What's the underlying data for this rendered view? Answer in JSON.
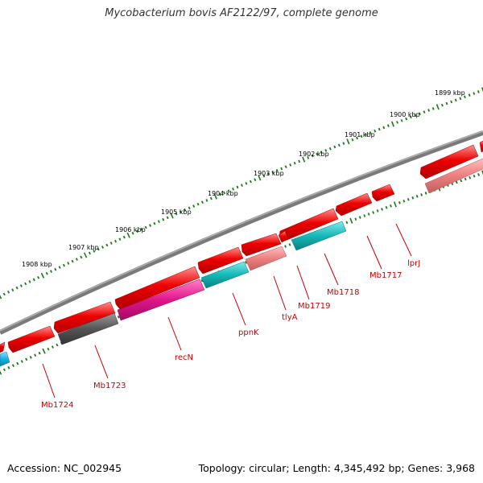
{
  "title": "Mycobacterium bovis AF2122/97, complete genome",
  "footer": {
    "accession": "Accession: NC_002945",
    "summary": "Topology: circular; Length: 4,345,492 bp; Genes: 3,968"
  },
  "colors": {
    "backbone": "#7a7a7a",
    "tick": "#1a7a1a",
    "label": "#cc0000",
    "gene_red": "#ee0000",
    "gene_pink": "#ee7f7f",
    "gene_teal": "#14b8b8",
    "gene_magenta": "#e0158a",
    "gene_grey": "#555555",
    "gene_blue": "#17b3e0"
  },
  "kbp_labels": [
    "1899 kbp",
    "1900 kbp",
    "1901 kbp",
    "1902 kbp",
    "1903 kbp",
    "1904 kbp",
    "1905 kbp",
    "1906 kbp",
    "1907 kbp",
    "1908 kbp"
  ],
  "genes": [
    {
      "name": "lprJ",
      "color_key": "gene_pink"
    },
    {
      "name": "Mb1717",
      "color_key": "gene_red"
    },
    {
      "name": "Mb1718",
      "color_key": "gene_teal"
    },
    {
      "name": "Mb1719",
      "color_key": "gene_red"
    },
    {
      "name": "tlyA",
      "color_key": "gene_pink"
    },
    {
      "name": "ppnK",
      "color_key": "gene_teal"
    },
    {
      "name": "recN",
      "color_key": "gene_magenta"
    },
    {
      "name": "Mb1723",
      "color_key": "gene_grey"
    },
    {
      "name": "Mb1724",
      "color_key": "gene_blue"
    }
  ]
}
